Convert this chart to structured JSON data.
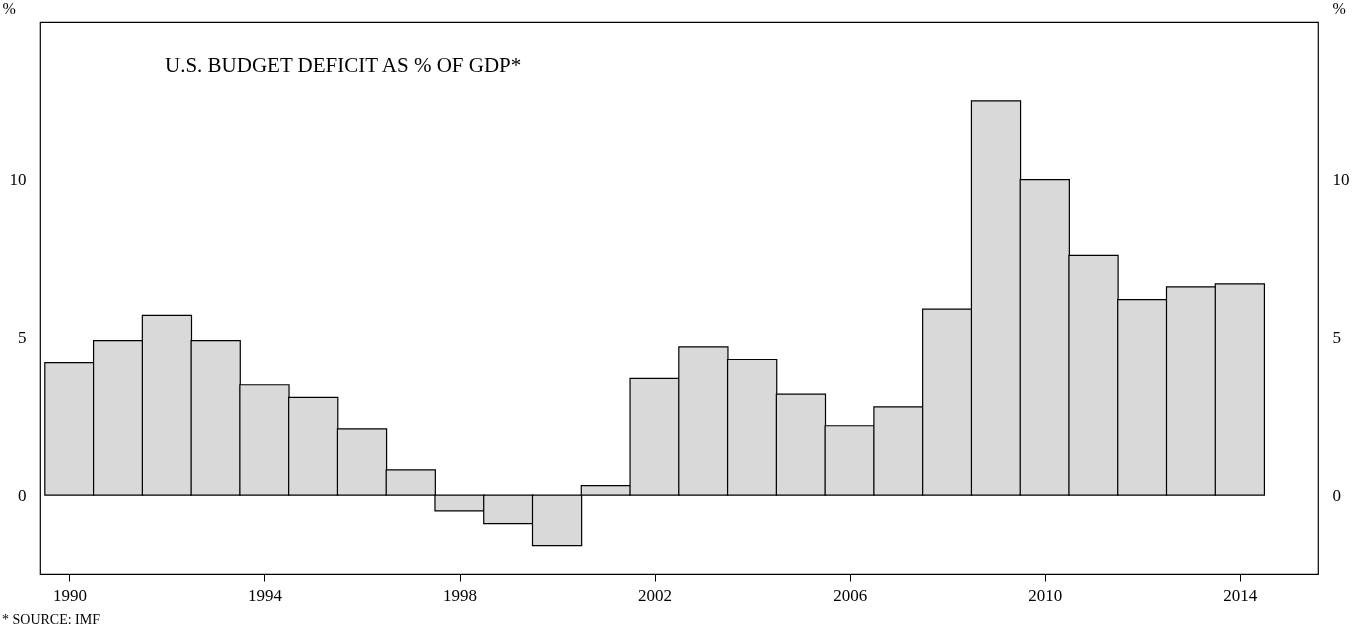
{
  "chart_data": {
    "type": "bar",
    "title": "U.S. BUDGET DEFICIT AS % OF GDP*",
    "ylabel": "%",
    "y2label": "%",
    "color": "#d9d9d9",
    "x": [
      1990,
      1991,
      1992,
      1993,
      1994,
      1995,
      1996,
      1997,
      1998,
      1999,
      2000,
      2001,
      2002,
      2003,
      2004,
      2005,
      2006,
      2007,
      2008,
      2009,
      2010,
      2011,
      2012,
      2013,
      2014
    ],
    "values": [
      4.2,
      4.9,
      5.7,
      4.9,
      3.5,
      3.1,
      2.1,
      0.8,
      -0.5,
      -0.9,
      -1.6,
      0.3,
      3.7,
      4.7,
      4.3,
      3.2,
      2.2,
      2.8,
      5.9,
      12.5,
      10.0,
      7.6,
      6.2,
      6.6,
      6.7
    ],
    "xlim": [
      1989.5,
      2015.5
    ],
    "xticks": [
      1990,
      1994,
      1998,
      2002,
      2006,
      2010,
      2014
    ],
    "ylim": [
      -2.5,
      15
    ],
    "yticks": [
      0,
      5,
      10
    ],
    "y2lim": [
      -2.5,
      15
    ],
    "y2ticks": [
      0,
      5,
      10
    ],
    "grid": false,
    "annotations": [
      "* SOURCE: IMF"
    ]
  }
}
